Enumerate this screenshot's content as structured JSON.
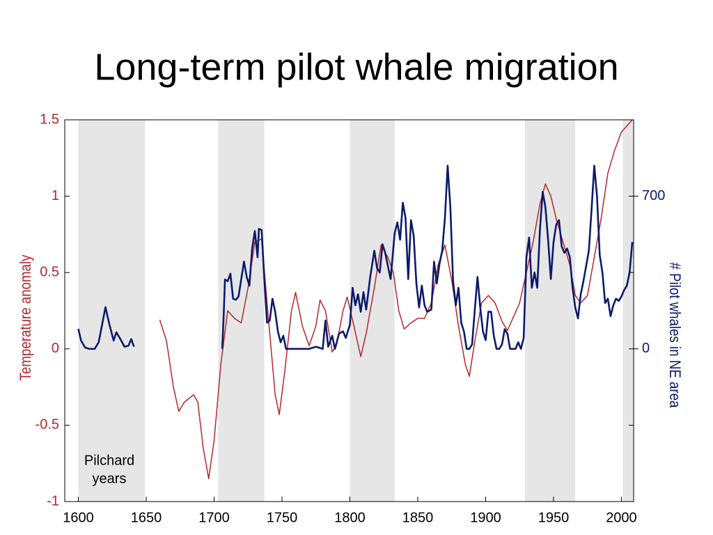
{
  "chart_data": {
    "type": "line",
    "title": "Long-term pilot whale migration",
    "y_label": "Temperature anomaly",
    "y2_label": "# Pilot whales in NE area",
    "annotation_lines": [
      "Pilchard",
      "years"
    ],
    "xlim": [
      1590,
      2009
    ],
    "xticks": [
      1600,
      1650,
      1700,
      1750,
      1800,
      1850,
      1900,
      1950,
      2000
    ],
    "ylim": [
      -1,
      1.5
    ],
    "yticks": [
      -1,
      -0.5,
      0,
      0.5,
      1,
      1.5
    ],
    "y2lim": [
      -700,
      1050
    ],
    "y2ticks": [
      0,
      700
    ],
    "shaded_regions": [
      [
        1600,
        1649
      ],
      [
        1703,
        1737
      ],
      [
        1800,
        1833
      ],
      [
        1929,
        1966
      ],
      [
        2001,
        2009
      ]
    ],
    "shade_color": "#e6e6e6",
    "y_color": "#b5262b",
    "y2_color": "#0b1a6b",
    "series": [
      {
        "color": "#b5262b",
        "x": [
          1660,
          1665,
          1670,
          1674,
          1678,
          1685,
          1688,
          1692,
          1696,
          1700,
          1705,
          1710,
          1715,
          1720,
          1725,
          1730,
          1735,
          1740,
          1745,
          1748,
          1752,
          1757,
          1760,
          1765,
          1770,
          1775,
          1778,
          1782,
          1787,
          1790,
          1795,
          1798,
          1803,
          1808,
          1812,
          1818,
          1823,
          1828,
          1832,
          1836,
          1840,
          1845,
          1850,
          1855,
          1860,
          1865,
          1870,
          1875,
          1880,
          1885,
          1888,
          1892,
          1897,
          1902,
          1907,
          1912,
          1916,
          1920,
          1925,
          1930,
          1935,
          1940,
          1944,
          1948,
          1952,
          1957,
          1962,
          1966,
          1970,
          1975,
          1980,
          1985,
          1990,
          1995,
          2000,
          2008
        ],
        "values": [
          0.19,
          0.05,
          -0.25,
          -0.41,
          -0.35,
          -0.3,
          -0.35,
          -0.65,
          -0.85,
          -0.6,
          -0.1,
          0.25,
          0.2,
          0.17,
          0.4,
          0.7,
          0.72,
          0.2,
          -0.3,
          -0.43,
          -0.15,
          0.25,
          0.37,
          0.15,
          0.02,
          0.15,
          0.32,
          0.25,
          -0.02,
          0.02,
          0.25,
          0.34,
          0.15,
          -0.05,
          0.1,
          0.4,
          0.68,
          0.6,
          0.5,
          0.25,
          0.13,
          0.17,
          0.2,
          0.2,
          0.3,
          0.55,
          0.68,
          0.45,
          0.15,
          -0.1,
          -0.18,
          0.05,
          0.3,
          0.35,
          0.3,
          0.18,
          0.12,
          0.2,
          0.3,
          0.5,
          0.7,
          0.95,
          1.08,
          1.0,
          0.85,
          0.7,
          0.55,
          0.35,
          0.3,
          0.35,
          0.6,
          0.85,
          1.15,
          1.3,
          1.42,
          1.5
        ]
      },
      {
        "color": "#0b1a6b",
        "axis": "y2",
        "x": [
          1600,
          1602,
          1605,
          1608,
          1612,
          1615,
          1620,
          1623,
          1626,
          1628,
          1631,
          1634,
          1637,
          1639,
          1641,
          1670,
          1706,
          1707,
          1708,
          1710,
          1712,
          1714,
          1716,
          1718,
          1720,
          1722,
          1724,
          1726,
          1728,
          1730,
          1732,
          1733,
          1735,
          1737,
          1739,
          1741,
          1743,
          1745,
          1747,
          1749,
          1751,
          1753,
          1760,
          1770,
          1775,
          1780,
          1782,
          1784,
          1787,
          1789,
          1792,
          1795,
          1797,
          1800,
          1802,
          1804,
          1806,
          1808,
          1810,
          1812,
          1815,
          1818,
          1820,
          1822,
          1824,
          1826,
          1828,
          1830,
          1833,
          1835,
          1837,
          1839,
          1841,
          1843,
          1845,
          1847,
          1849,
          1851,
          1853,
          1855,
          1857,
          1860,
          1862,
          1864,
          1866,
          1868,
          1870,
          1872,
          1874,
          1876,
          1878,
          1880,
          1882,
          1884,
          1886,
          1888,
          1890,
          1892,
          1894,
          1896,
          1898,
          1900,
          1902,
          1904,
          1906,
          1908,
          1910,
          1912,
          1914,
          1916,
          1918,
          1920,
          1922,
          1924,
          1926,
          1928,
          1930,
          1932,
          1934,
          1936,
          1938,
          1940,
          1942,
          1944,
          1946,
          1948,
          1950,
          1952,
          1954,
          1956,
          1958,
          1960,
          1962,
          1964,
          1966,
          1968,
          1970,
          1972,
          1974,
          1976,
          1978,
          1980,
          1982,
          1984,
          1986,
          1988,
          1990,
          1992,
          1994,
          1996,
          1998,
          2000,
          2002,
          2004,
          2006,
          2008
        ],
        "values": [
          92,
          38,
          6,
          0,
          0,
          30,
          191,
          110,
          38,
          76,
          45,
          10,
          15,
          45,
          10,
          null,
          0,
          140,
          318,
          310,
          345,
          230,
          225,
          240,
          320,
          400,
          330,
          290,
          460,
          540,
          420,
          550,
          545,
          320,
          120,
          130,
          230,
          170,
          80,
          30,
          60,
          0,
          0,
          0,
          10,
          0,
          130,
          10,
          60,
          0,
          70,
          80,
          50,
          110,
          280,
          200,
          250,
          170,
          260,
          180,
          330,
          450,
          370,
          350,
          480,
          440,
          380,
          320,
          530,
          580,
          500,
          670,
          600,
          320,
          590,
          520,
          300,
          190,
          290,
          200,
          170,
          180,
          400,
          300,
          390,
          450,
          600,
          840,
          650,
          310,
          200,
          280,
          120,
          80,
          0,
          0,
          20,
          180,
          330,
          190,
          80,
          40,
          170,
          170,
          60,
          0,
          0,
          20,
          90,
          70,
          0,
          0,
          0,
          30,
          0,
          50,
          420,
          510,
          280,
          350,
          280,
          550,
          720,
          650,
          500,
          320,
          490,
          570,
          590,
          470,
          440,
          460,
          420,
          280,
          190,
          140,
          250,
          310,
          380,
          450,
          640,
          840,
          700,
          430,
          350,
          210,
          230,
          150,
          200,
          230,
          220,
          240,
          270,
          290,
          350,
          490
        ]
      }
    ]
  }
}
